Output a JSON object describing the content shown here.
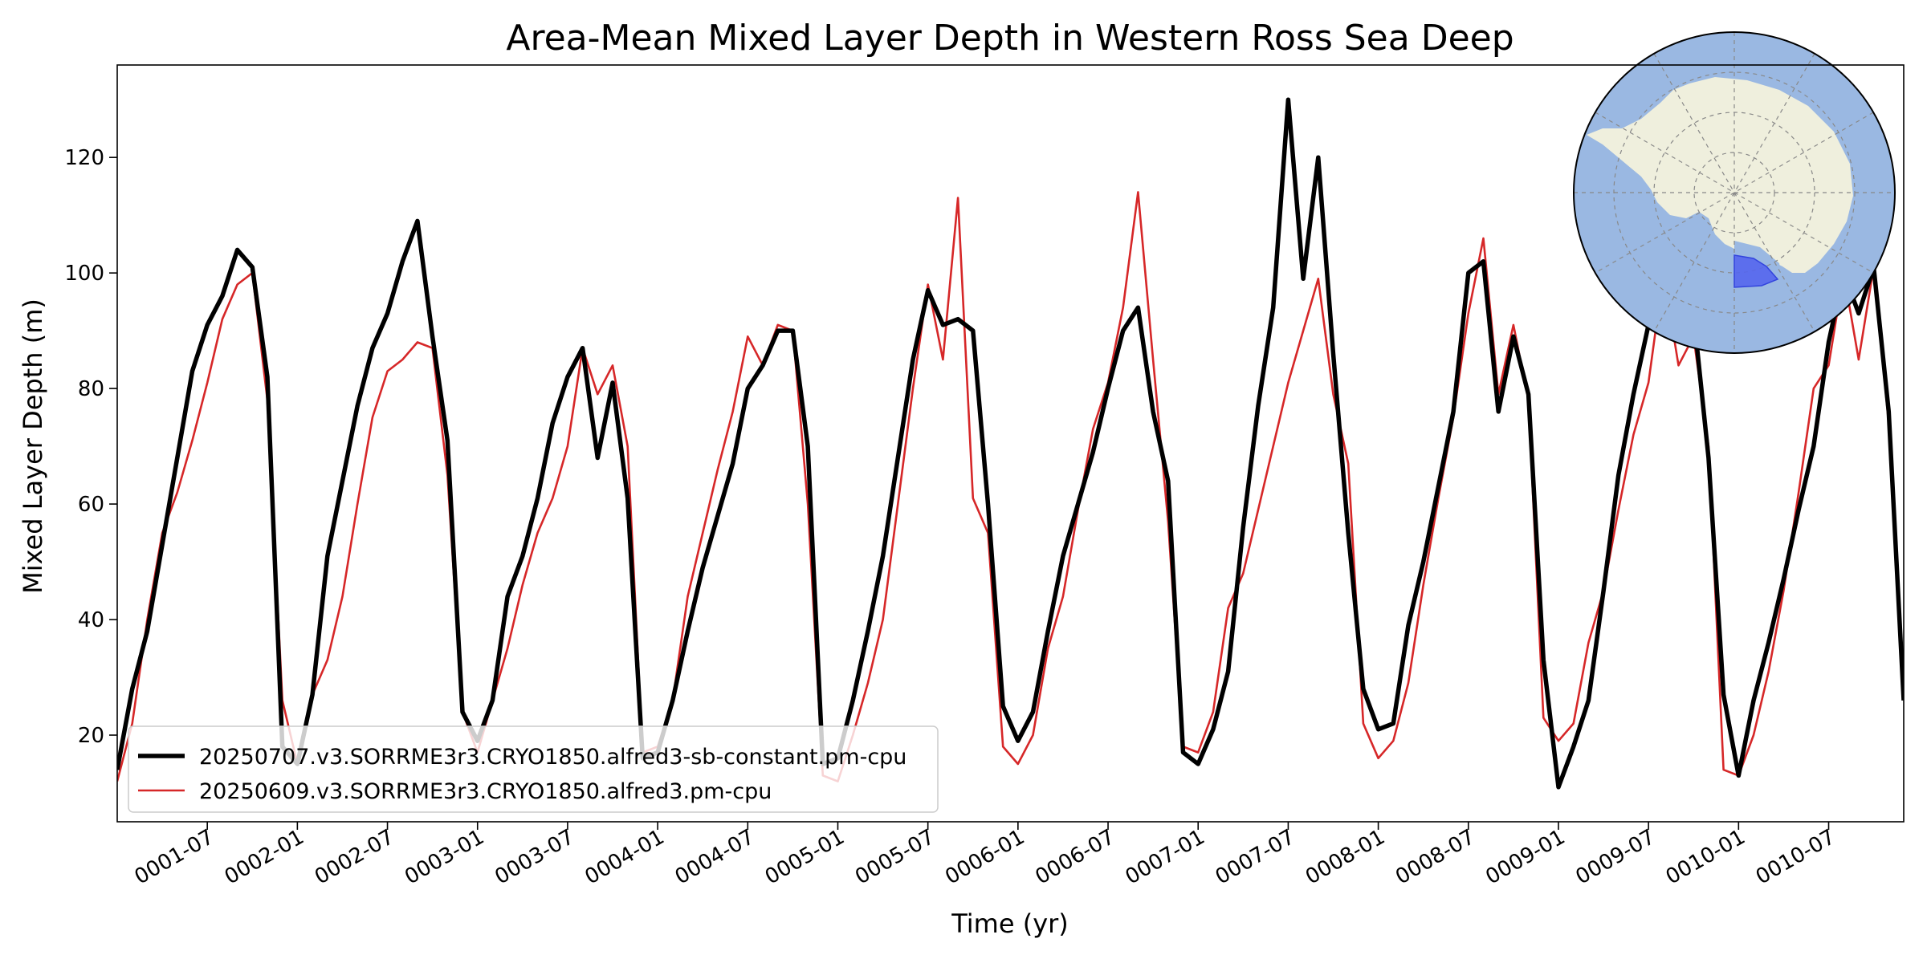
{
  "chart_data": {
    "type": "line",
    "title": "Area-Mean Mixed Layer Depth in Western Ross Sea Deep",
    "xlabel": "Time (yr)",
    "ylabel": "Mixed Layer Depth (m)",
    "xlim": [
      "0001-01",
      "0010-12"
    ],
    "ylim": [
      5,
      136
    ],
    "x_ticks": [
      "0001-07",
      "0002-01",
      "0002-07",
      "0003-01",
      "0003-07",
      "0004-01",
      "0004-07",
      "0005-01",
      "0005-07",
      "0006-01",
      "0006-07",
      "0007-01",
      "0007-07",
      "0008-01",
      "0008-07",
      "0009-01",
      "0009-07",
      "0010-01",
      "0010-07"
    ],
    "y_ticks": [
      20,
      40,
      60,
      80,
      100,
      120
    ],
    "grid": false,
    "legend_position": "lower-left",
    "x": [
      "0001-01",
      "0001-02",
      "0001-03",
      "0001-04",
      "0001-05",
      "0001-06",
      "0001-07",
      "0001-08",
      "0001-09",
      "0001-10",
      "0001-11",
      "0001-12",
      "0002-01",
      "0002-02",
      "0002-03",
      "0002-04",
      "0002-05",
      "0002-06",
      "0002-07",
      "0002-08",
      "0002-09",
      "0002-10",
      "0002-11",
      "0002-12",
      "0003-01",
      "0003-02",
      "0003-03",
      "0003-04",
      "0003-05",
      "0003-06",
      "0003-07",
      "0003-08",
      "0003-09",
      "0003-10",
      "0003-11",
      "0003-12",
      "0004-01",
      "0004-02",
      "0004-03",
      "0004-04",
      "0004-05",
      "0004-06",
      "0004-07",
      "0004-08",
      "0004-09",
      "0004-10",
      "0004-11",
      "0004-12",
      "0005-01",
      "0005-02",
      "0005-03",
      "0005-04",
      "0005-05",
      "0005-06",
      "0005-07",
      "0005-08",
      "0005-09",
      "0005-10",
      "0005-11",
      "0005-12",
      "0006-01",
      "0006-02",
      "0006-03",
      "0006-04",
      "0006-05",
      "0006-06",
      "0006-07",
      "0006-08",
      "0006-09",
      "0006-10",
      "0006-11",
      "0006-12",
      "0007-01",
      "0007-02",
      "0007-03",
      "0007-04",
      "0007-05",
      "0007-06",
      "0007-07",
      "0007-08",
      "0007-09",
      "0007-10",
      "0007-11",
      "0007-12",
      "0008-01",
      "0008-02",
      "0008-03",
      "0008-04",
      "0008-05",
      "0008-06",
      "0008-07",
      "0008-08",
      "0008-09",
      "0008-10",
      "0008-11",
      "0008-12",
      "0009-01",
      "0009-02",
      "0009-03",
      "0009-04",
      "0009-05",
      "0009-06",
      "0009-07",
      "0009-08",
      "0009-09",
      "0009-10",
      "0009-11",
      "0009-12",
      "0010-01",
      "0010-02",
      "0010-03",
      "0010-04",
      "0010-05",
      "0010-06",
      "0010-07",
      "0010-08",
      "0010-09",
      "0010-10",
      "0010-11",
      "0010-12"
    ],
    "series": [
      {
        "name": "20250707.v3.SORRME3r3.CRYO1850.alfred3-sb-constant.pm-cpu",
        "color": "#000000",
        "values": [
          14,
          28,
          38,
          53,
          68,
          83,
          91,
          96,
          104,
          101,
          82,
          18,
          15,
          27,
          51,
          64,
          77,
          87,
          93,
          102,
          109,
          89,
          71,
          24,
          19,
          26,
          44,
          51,
          61,
          74,
          82,
          87,
          68,
          81,
          61,
          16,
          17,
          26,
          38,
          49,
          58,
          67,
          80,
          84,
          90,
          90,
          70,
          15,
          16,
          26,
          38,
          51,
          68,
          85,
          97,
          91,
          92,
          90,
          60,
          25,
          19,
          24,
          38,
          51,
          60,
          69,
          80,
          90,
          94,
          76,
          64,
          17,
          15,
          21,
          31,
          56,
          77,
          94,
          130,
          99,
          120,
          86,
          55,
          28,
          21,
          22,
          39,
          50,
          63,
          76,
          100,
          102,
          76,
          89,
          79,
          33,
          11,
          18,
          26,
          45,
          65,
          79,
          91,
          97,
          100,
          93,
          68,
          27,
          13,
          26,
          36,
          47,
          59,
          70,
          88,
          100,
          93,
          101,
          76,
          26
        ]
      },
      {
        "name": "20250609.v3.SORRME3r3.CRYO1850.alfred3.pm-cpu",
        "color": "#d62728",
        "values": [
          12,
          22,
          40,
          55,
          62,
          71,
          81,
          92,
          98,
          100,
          78,
          26,
          15,
          27,
          33,
          44,
          60,
          75,
          83,
          85,
          88,
          87,
          65,
          24,
          17,
          26,
          35,
          46,
          55,
          61,
          70,
          87,
          79,
          84,
          70,
          17,
          18,
          26,
          44,
          55,
          66,
          76,
          89,
          84,
          91,
          90,
          60,
          13,
          12,
          20,
          29,
          40,
          60,
          80,
          98,
          85,
          113,
          61,
          55,
          18,
          15,
          20,
          35,
          44,
          59,
          73,
          81,
          94,
          114,
          85,
          57,
          18,
          17,
          24,
          42,
          48,
          59,
          70,
          81,
          90,
          99,
          79,
          67,
          22,
          16,
          19,
          29,
          46,
          61,
          75,
          93,
          106,
          79,
          91,
          78,
          23,
          19,
          22,
          36,
          45,
          59,
          72,
          81,
          100,
          84,
          89,
          70,
          14,
          13,
          20,
          31,
          45,
          62,
          80,
          84,
          100,
          85,
          101,
          74,
          29
        ]
      }
    ],
    "inset": {
      "type": "south-polar-map",
      "ocean_color": "#9ab8e2",
      "land_color": "#efefdd",
      "region_color": "#5566ee",
      "region": "Western Ross Sea Deep"
    }
  }
}
